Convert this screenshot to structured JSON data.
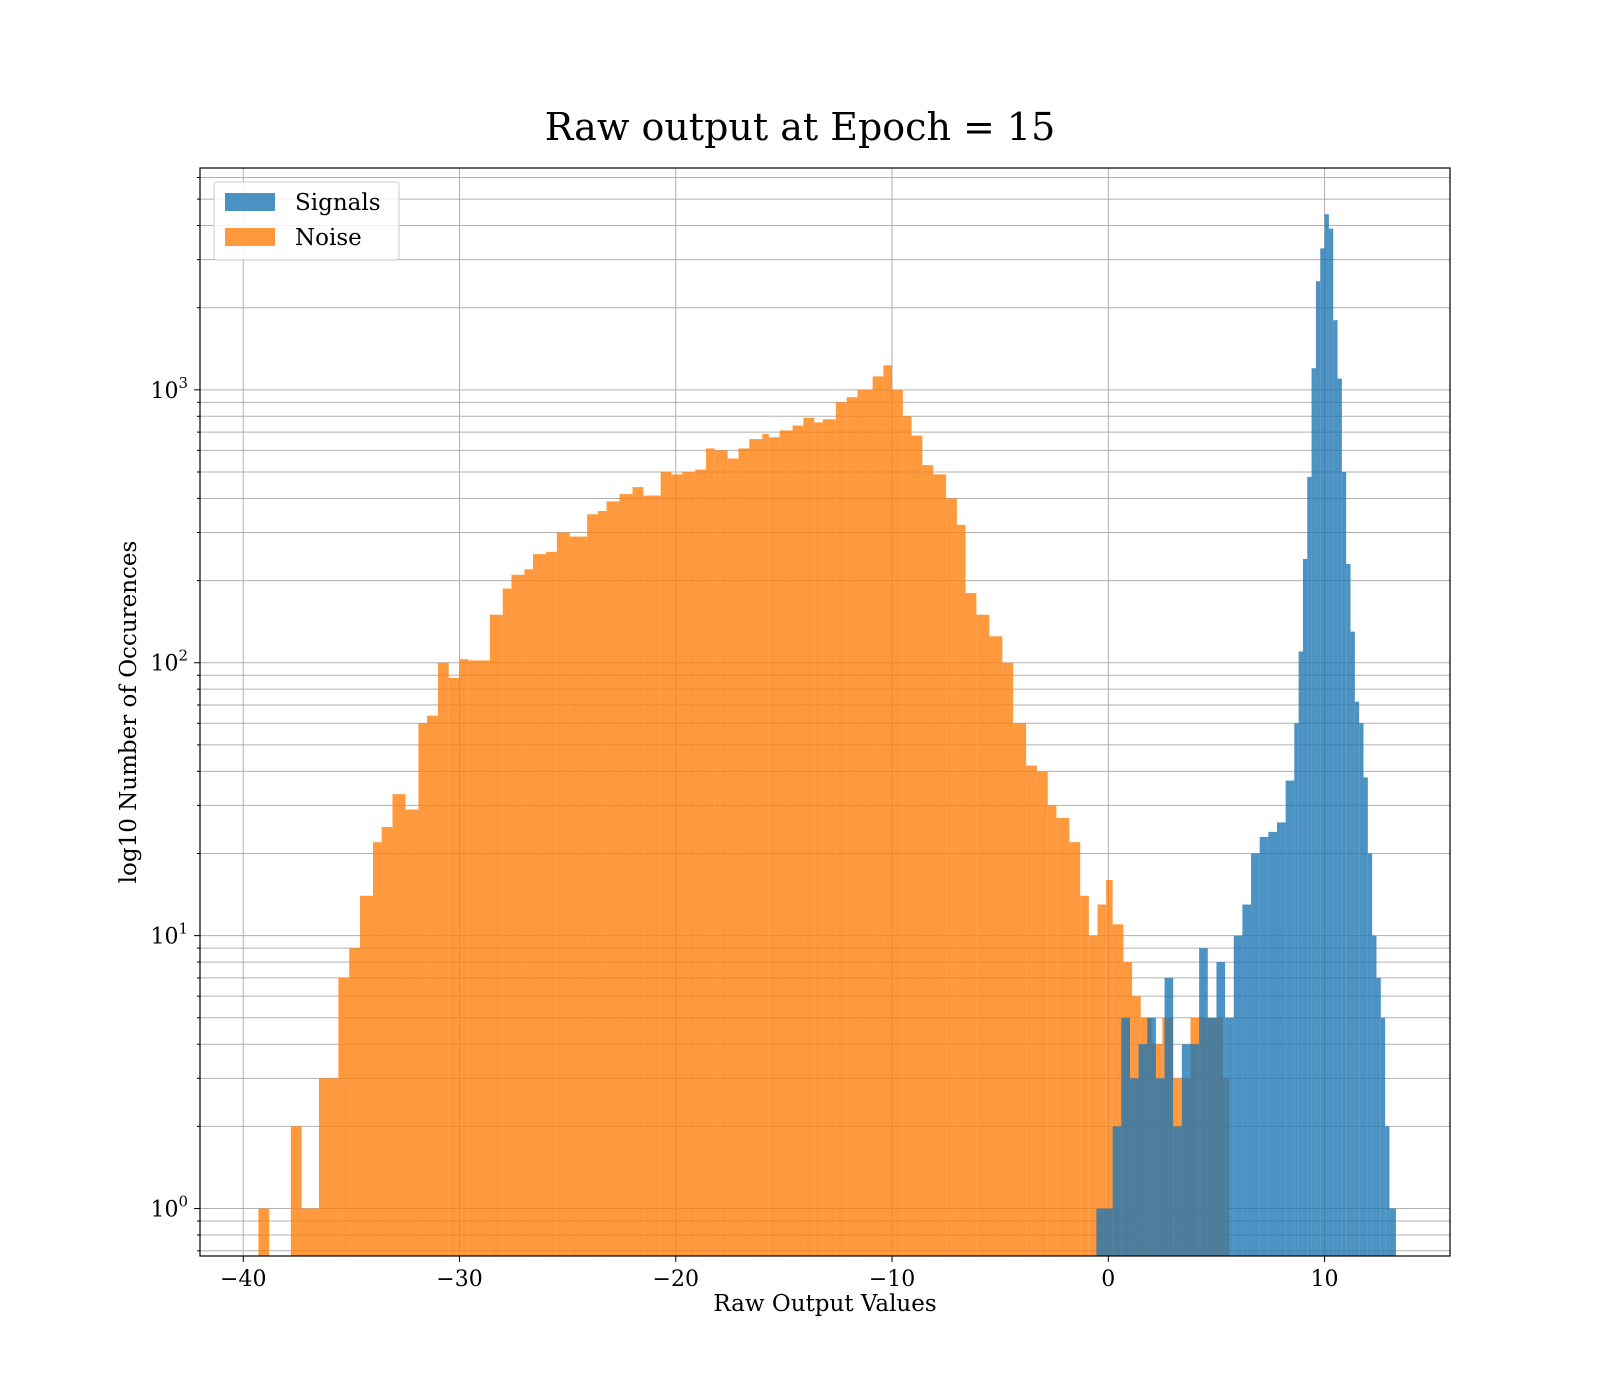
{
  "chart_data": {
    "type": "bar",
    "title": "Raw output at Epoch = 15",
    "xlabel": "Raw Output Values",
    "ylabel": "log10 Number of Occurences",
    "xlim": [
      -42,
      15.8
    ],
    "ylim": [
      0.67,
      6500
    ],
    "yscale": "log",
    "grid": true,
    "legend_position": "top-left",
    "x_ticks": [
      -40,
      -30,
      -20,
      -10,
      0,
      10
    ],
    "x_tick_labels": [
      "−40",
      "−30",
      "−20",
      "−10",
      "0",
      "10"
    ],
    "y_ticks": [
      1,
      10,
      100,
      1000
    ],
    "y_tick_labels": [
      {
        "base": "10",
        "exp": "0"
      },
      {
        "base": "10",
        "exp": "1"
      },
      {
        "base": "10",
        "exp": "2"
      },
      {
        "base": "10",
        "exp": "3"
      }
    ],
    "series": [
      {
        "name": "Signals",
        "color": "#1f77b4",
        "opacity": 0.8,
        "bin_edges": [
          -0.55,
          -0.2,
          0.2,
          0.6,
          1.0,
          1.4,
          1.8,
          2.2,
          2.6,
          3.0,
          3.4,
          3.8,
          4.2,
          4.6,
          5.0,
          5.4,
          5.8,
          6.2,
          6.6,
          7.0,
          7.4,
          7.8,
          8.2,
          8.6,
          8.8,
          9.0,
          9.2,
          9.4,
          9.6,
          9.8,
          10.0,
          10.2,
          10.4,
          10.6,
          10.8,
          11.0,
          11.2,
          11.4,
          11.6,
          11.8,
          12.0,
          12.2,
          12.4,
          12.6,
          12.8,
          13.0,
          13.3
        ],
        "counts": [
          1,
          1,
          2,
          5,
          3,
          4,
          5,
          3,
          7,
          2,
          4,
          4,
          9,
          5,
          8,
          5,
          10,
          13,
          20,
          23,
          24,
          26,
          37,
          60,
          110,
          240,
          480,
          1200,
          2500,
          3300,
          4400,
          3900,
          1800,
          1100,
          500,
          230,
          130,
          72,
          60,
          38,
          20,
          10,
          7,
          5,
          2,
          1
        ]
      },
      {
        "name": "Noise",
        "color": "#ff7f0e",
        "opacity": 0.8,
        "bin_edges": [
          -39.3,
          -38.8,
          -37.8,
          -37.3,
          -36.5,
          -35.6,
          -35.1,
          -34.6,
          -34.0,
          -33.6,
          -33.1,
          -32.5,
          -31.9,
          -31.5,
          -31.0,
          -30.5,
          -30.0,
          -29.6,
          -28.6,
          -28.0,
          -27.6,
          -27.0,
          -26.6,
          -26.0,
          -25.5,
          -24.9,
          -24.1,
          -23.6,
          -23.2,
          -22.6,
          -22.0,
          -21.5,
          -20.7,
          -20.2,
          -19.7,
          -19.1,
          -18.6,
          -18.2,
          -17.6,
          -17.1,
          -16.6,
          -16.0,
          -15.7,
          -15.2,
          -14.6,
          -14.1,
          -13.6,
          -13.2,
          -12.6,
          -12.1,
          -11.6,
          -10.9,
          -10.4,
          -10.0,
          -9.5,
          -9.1,
          -8.6,
          -8.1,
          -7.5,
          -7.0,
          -6.6,
          -6.1,
          -5.5,
          -4.9,
          -4.4,
          -3.8,
          -3.3,
          -2.8,
          -2.4,
          -1.8,
          -1.3,
          -0.9,
          -0.5,
          -0.1,
          0.2,
          0.7,
          1.1,
          1.5,
          2.0,
          2.5,
          3.0,
          3.3,
          3.8,
          4.3,
          4.8,
          5.3,
          5.6
        ],
        "counts": [
          1,
          0,
          2,
          1,
          3,
          7,
          9,
          14,
          22,
          25,
          33,
          29,
          60,
          64,
          100,
          88,
          103,
          102,
          150,
          187,
          210,
          220,
          250,
          255,
          300,
          290,
          350,
          360,
          390,
          415,
          440,
          410,
          500,
          490,
          500,
          510,
          610,
          600,
          560,
          610,
          660,
          690,
          670,
          710,
          740,
          790,
          760,
          780,
          900,
          940,
          1000,
          1120,
          1230,
          1000,
          800,
          680,
          530,
          490,
          400,
          320,
          180,
          150,
          125,
          100,
          60,
          42,
          40,
          30,
          27,
          22,
          14,
          10,
          13,
          16,
          11,
          8,
          6,
          5,
          4,
          5,
          3,
          3,
          5,
          5,
          5,
          3
        ]
      }
    ]
  }
}
